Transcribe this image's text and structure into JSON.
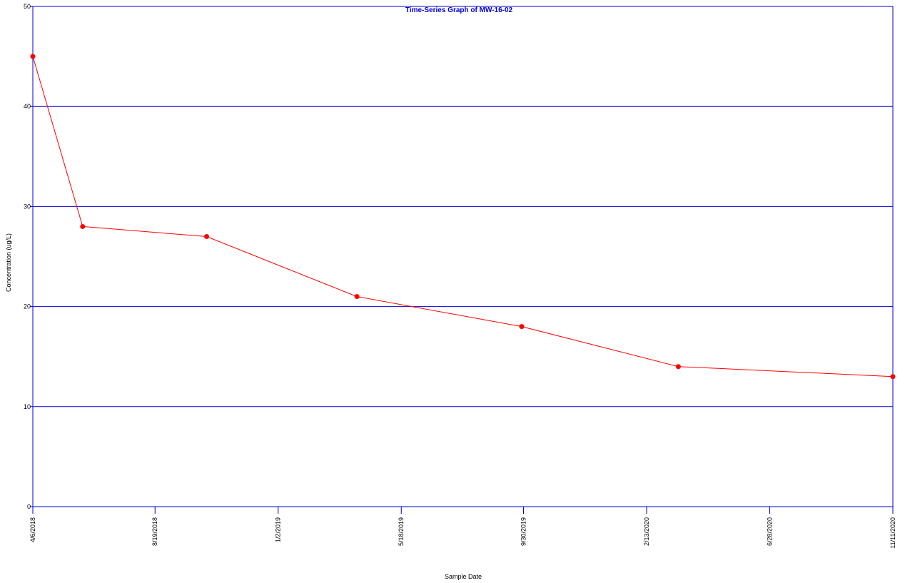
{
  "chart_data": {
    "type": "line",
    "title": "Time-Series Graph of MW-16-02",
    "xlabel": "Sample Date",
    "ylabel": "Concentration (ug/L)",
    "ylim": [
      0,
      50
    ],
    "y_ticks": [
      "0",
      "10",
      "20",
      "30",
      "40",
      "50"
    ],
    "xlim": [
      "2018-04-06",
      "2020-11-11"
    ],
    "x_ticks": [
      "4/6/2018",
      "8/19/2018",
      "1/2/2019",
      "5/18/2019",
      "9/30/2019",
      "2/13/2020",
      "6/28/2020",
      "11/11/2020"
    ],
    "grid": "horizontal",
    "series": [
      {
        "x": [
          "2018-04-06",
          "2018-05-31",
          "2018-10-15",
          "2019-03-30",
          "2019-09-28",
          "2020-03-19",
          "2020-11-11"
        ],
        "values": [
          45,
          28,
          27,
          21,
          18,
          14,
          13
        ]
      }
    ],
    "colors": {
      "frame": "#0000d8",
      "grid": "#0000d8",
      "series": "#ff0000",
      "title": "#0000d8"
    }
  }
}
